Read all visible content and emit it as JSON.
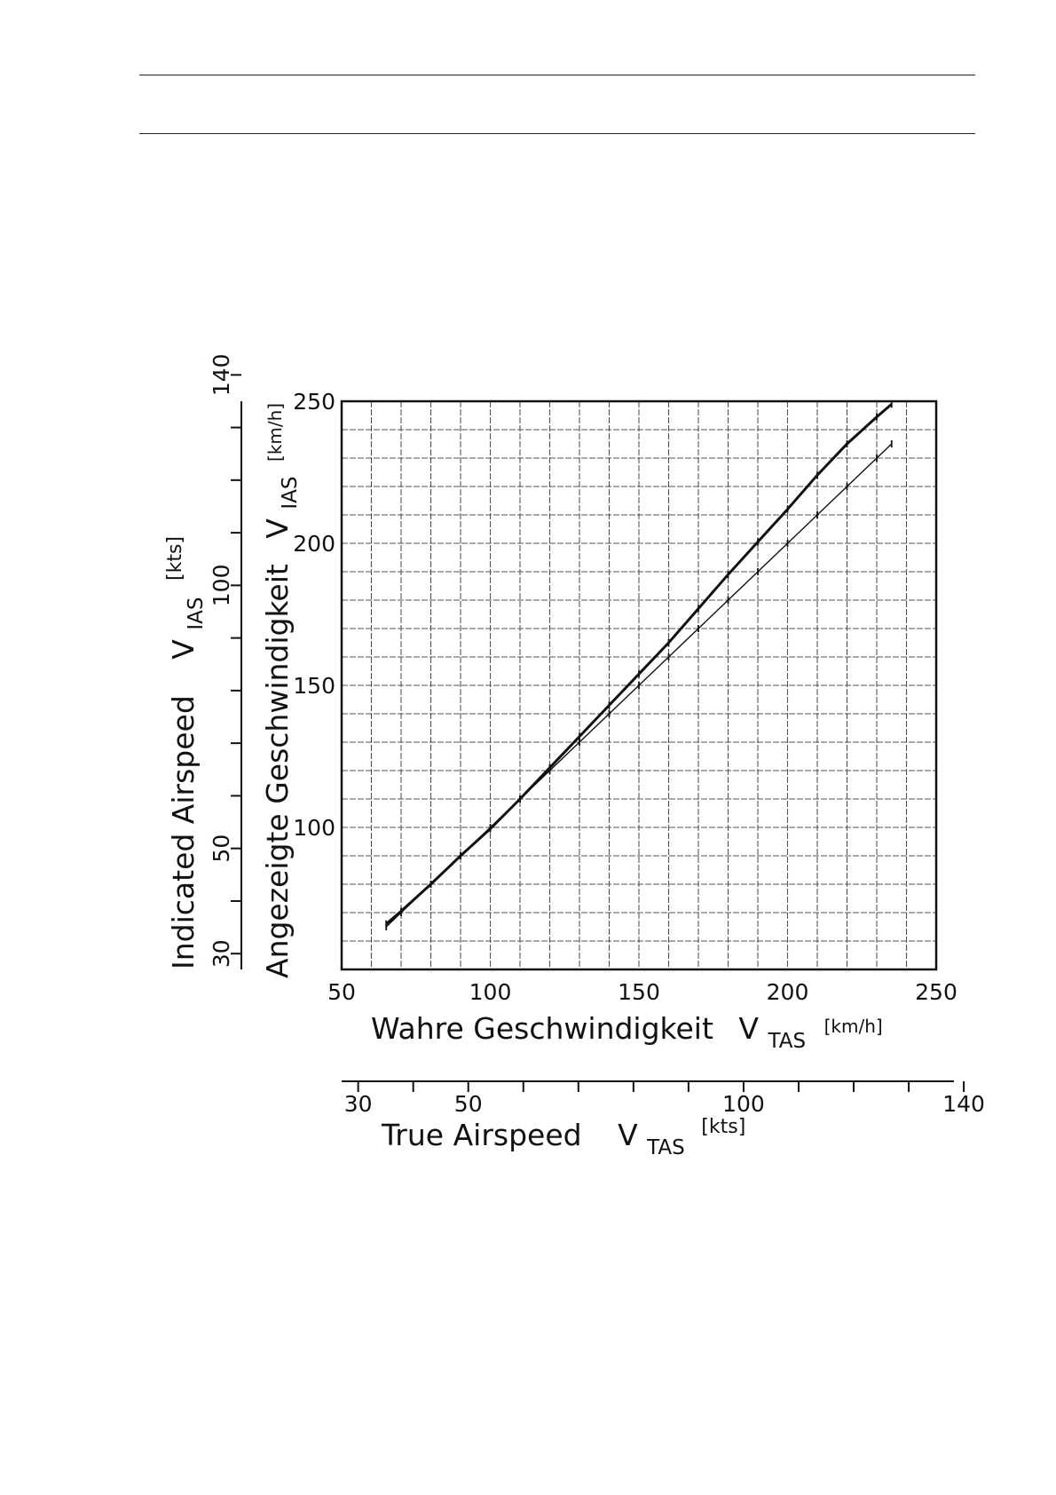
{
  "chart_data": {
    "type": "line",
    "x": [
      65,
      70,
      80,
      90,
      100,
      110,
      120,
      130,
      140,
      150,
      160,
      170,
      180,
      190,
      200,
      210,
      220,
      230,
      235
    ],
    "series": [
      {
        "values": [
          66,
          70.5,
          80,
          90,
          99.5,
          110,
          121,
          132,
          143,
          154,
          165,
          177,
          189,
          200.5,
          212,
          224,
          235,
          244.5,
          249
        ]
      },
      {
        "values": [
          65,
          70,
          80,
          90,
          100,
          110,
          120,
          130,
          140,
          150,
          160,
          170,
          180,
          190,
          200,
          210,
          220,
          230,
          235
        ]
      }
    ],
    "xlim": [
      50,
      250
    ],
    "ylim": [
      50,
      250
    ],
    "xlabel": "Wahre Geschwindigkeit",
    "xlabel_symbol": "V",
    "xlabel_sub": "TAS",
    "xlabel_unit": "[km/h]",
    "ylabel": "Angezeigte Geschwindigkeit",
    "ylabel_symbol": "V",
    "ylabel_sub": "IAS",
    "ylabel_unit": "[km/h]",
    "x_ticks": [
      "50",
      "100",
      "150",
      "200",
      "250"
    ],
    "y_ticks": [
      "100",
      "150",
      "200",
      "250"
    ],
    "grid": true,
    "kts_x_axis": {
      "label": "True Airspeed",
      "symbol": "V",
      "sub": "TAS",
      "unit": "[kts]",
      "ticks": [
        "30",
        "50",
        "100",
        "140"
      ]
    },
    "kts_y_axis": {
      "label": "Indicated Airspeed",
      "symbol": "V",
      "sub": "IAS",
      "unit": "[kts]",
      "ticks": [
        "30",
        "50",
        "100",
        "140"
      ]
    }
  }
}
